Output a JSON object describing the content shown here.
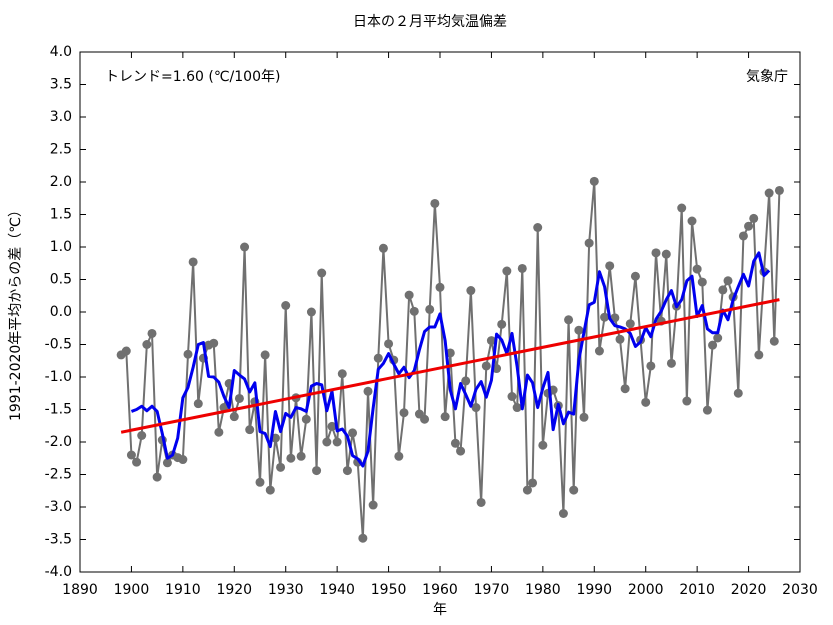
{
  "chart_data": {
    "type": "line",
    "title": "日本の２月平均気温偏差",
    "xlabel": "年",
    "ylabel": "1991-2020年平均からの差（℃）",
    "annotations": [
      "トレンド=1.60 (℃/100年)",
      "気象庁"
    ],
    "x": [
      1898,
      1899,
      1900,
      1901,
      1902,
      1903,
      1904,
      1905,
      1906,
      1907,
      1908,
      1909,
      1910,
      1911,
      1912,
      1913,
      1914,
      1915,
      1916,
      1917,
      1918,
      1919,
      1920,
      1921,
      1922,
      1923,
      1924,
      1925,
      1926,
      1927,
      1928,
      1929,
      1930,
      1931,
      1932,
      1933,
      1934,
      1935,
      1936,
      1937,
      1938,
      1939,
      1940,
      1941,
      1942,
      1943,
      1944,
      1945,
      1946,
      1947,
      1948,
      1949,
      1950,
      1951,
      1952,
      1953,
      1954,
      1955,
      1956,
      1957,
      1958,
      1959,
      1960,
      1961,
      1962,
      1963,
      1964,
      1965,
      1966,
      1967,
      1968,
      1969,
      1970,
      1971,
      1972,
      1973,
      1974,
      1975,
      1976,
      1977,
      1978,
      1979,
      1980,
      1981,
      1982,
      1983,
      1984,
      1985,
      1986,
      1987,
      1988,
      1989,
      1990,
      1991,
      1992,
      1993,
      1994,
      1995,
      1996,
      1997,
      1998,
      1999,
      2000,
      2001,
      2002,
      2003,
      2004,
      2005,
      2006,
      2007,
      2008,
      2009,
      2010,
      2011,
      2012,
      2013,
      2014,
      2015,
      2016,
      2017,
      2018,
      2019,
      2020,
      2021,
      2022,
      2023,
      2024,
      2025,
      2026
    ],
    "series": [
      {
        "color": "#707070",
        "markers": true,
        "values": [
          -0.66,
          -0.6,
          -2.2,
          -2.31,
          -1.9,
          -0.5,
          -0.33,
          -2.54,
          -1.97,
          -2.32,
          -2.2,
          -2.24,
          -2.27,
          -0.65,
          0.77,
          -1.41,
          -0.71,
          -0.51,
          -0.48,
          -1.85,
          -1.47,
          -1.1,
          -1.61,
          -1.33,
          1.0,
          -1.81,
          -1.38,
          -2.62,
          -0.66,
          -2.74,
          -1.94,
          -2.39,
          0.1,
          -2.25,
          -1.32,
          -2.22,
          -1.65,
          0.0,
          -2.44,
          0.6,
          -2.0,
          -1.76,
          -2.0,
          -0.95,
          -2.44,
          -1.86,
          -2.31,
          -3.48,
          -1.22,
          -2.97,
          -0.71,
          0.98,
          -0.49,
          -0.74,
          -2.22,
          -1.55,
          0.26,
          0.01,
          -1.57,
          -1.65,
          0.04,
          1.67,
          0.38,
          -1.61,
          -0.63,
          -2.02,
          -2.14,
          -1.06,
          0.33,
          -1.47,
          -2.93,
          -0.83,
          -0.44,
          -0.87,
          -0.19,
          0.63,
          -1.3,
          -1.47,
          0.67,
          -2.74,
          -2.63,
          1.3,
          -2.05,
          -1.25,
          -1.2,
          -1.44,
          -3.1,
          -0.12,
          -2.74,
          -0.28,
          -1.62,
          1.06,
          2.01,
          -0.6,
          -0.08,
          0.71,
          -0.09,
          -0.42,
          -1.18,
          -0.18,
          0.55,
          -0.43,
          -1.39,
          -0.83,
          0.91,
          -0.14,
          0.89,
          -0.79,
          0.09,
          1.6,
          -1.37,
          1.4,
          0.66,
          0.46,
          -1.51,
          -0.51,
          -0.4,
          0.34,
          0.48,
          0.23,
          -1.25,
          1.17,
          1.32,
          1.44,
          -0.66,
          0.62,
          1.83,
          -0.45,
          1.87
        ]
      },
      {
        "color": "#0000ee",
        "markers": false,
        "values": [
          null,
          null,
          -1.53,
          -1.5,
          -1.45,
          -1.52,
          -1.45,
          -1.53,
          -1.87,
          -2.25,
          -2.2,
          -1.94,
          -1.32,
          -1.16,
          -0.85,
          -0.5,
          -0.47,
          -0.99,
          -1.0,
          -1.08,
          -1.3,
          -1.47,
          -0.9,
          -0.97,
          -1.03,
          -1.23,
          -1.09,
          -1.84,
          -1.87,
          -2.07,
          -1.53,
          -1.84,
          -1.56,
          -1.62,
          -1.47,
          -1.49,
          -1.53,
          -1.14,
          -1.1,
          -1.12,
          -1.52,
          -1.22,
          -1.83,
          -1.8,
          -1.91,
          -2.21,
          -2.26,
          -2.37,
          -2.14,
          -1.48,
          -0.88,
          -0.79,
          -0.64,
          -0.8,
          -0.95,
          -0.85,
          -1.01,
          -0.9,
          -0.58,
          -0.3,
          -0.23,
          -0.23,
          -0.03,
          -0.44,
          -1.2,
          -1.49,
          -1.1,
          -1.27,
          -1.45,
          -1.19,
          -1.07,
          -1.31,
          -1.05,
          -0.34,
          -0.43,
          -0.64,
          -0.33,
          -0.84,
          -1.49,
          -0.97,
          -1.09,
          -1.47,
          -1.17,
          -0.93,
          -1.81,
          -1.42,
          -1.72,
          -1.54,
          -1.57,
          -0.74,
          -0.31,
          0.11,
          0.15,
          0.62,
          0.39,
          -0.1,
          -0.21,
          -0.23,
          -0.26,
          -0.33,
          -0.53,
          -0.46,
          -0.24,
          -0.38,
          -0.11,
          0.01,
          0.19,
          0.33,
          0.08,
          0.19,
          0.48,
          0.55,
          -0.07,
          0.1,
          -0.26,
          -0.32,
          -0.32,
          0.03,
          -0.12,
          0.19,
          0.39,
          0.58,
          0.4,
          0.78,
          0.91,
          0.56,
          0.64,
          null,
          null
        ]
      }
    ],
    "trend": {
      "color": "#ee0000",
      "x": [
        1898,
        2026
      ],
      "values": [
        -1.85,
        0.19
      ]
    },
    "xlim": [
      1890,
      2030
    ],
    "xticks": [
      1890,
      1900,
      1910,
      1920,
      1930,
      1940,
      1950,
      1960,
      1970,
      1980,
      1990,
      2000,
      2010,
      2020,
      2030
    ],
    "ylim": [
      -4,
      4
    ],
    "yticks": [
      {
        "value": -4,
        "label": "-4.0"
      },
      -3.5,
      {
        "value": -3,
        "label": "-3.0"
      },
      -2.5,
      {
        "value": -2,
        "label": "-2.0"
      },
      -1.5,
      {
        "value": -1,
        "label": "-1.0"
      },
      -0.5,
      {
        "value": 0,
        "label": "0.0"
      },
      0.5,
      {
        "value": 1,
        "label": "1.0"
      },
      1.5,
      {
        "value": 2,
        "label": "2.0"
      },
      2.5,
      {
        "value": 3,
        "label": "3.0"
      },
      3.5,
      {
        "value": 4,
        "label": "4.0"
      }
    ],
    "grid": false
  }
}
